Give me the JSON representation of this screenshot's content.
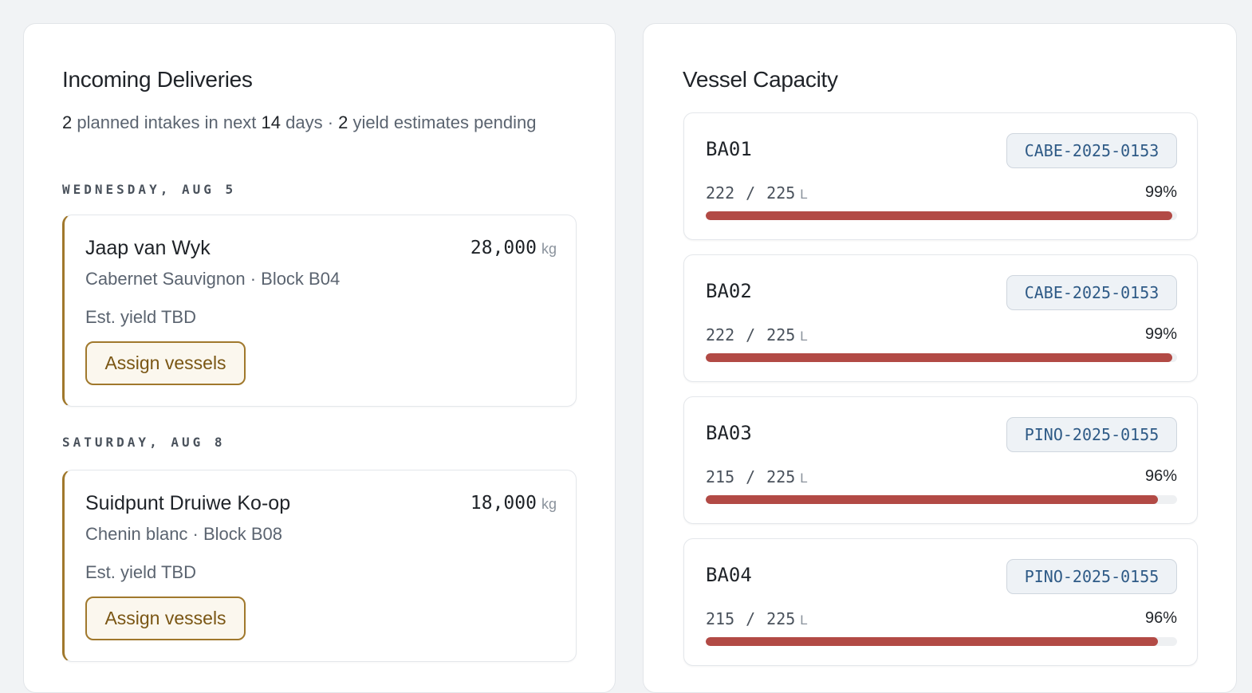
{
  "deliveries_panel": {
    "title": "Incoming Deliveries",
    "summary": {
      "planned_count": "2",
      "planned_text": " planned intakes in next ",
      "days_count": "14",
      "days_text": " days · ",
      "pending_count": "2",
      "pending_text": " yield estimates pending"
    },
    "groups": [
      {
        "day": "WEDNESDAY, AUG 5",
        "delivery": {
          "grower": "Jaap van Wyk",
          "variety": "Cabernet Sauvignon · Block B04",
          "yield": "Est. yield TBD",
          "weight": "28,000",
          "unit": "kg",
          "button": "Assign vessels"
        }
      },
      {
        "day": "SATURDAY, AUG 8",
        "delivery": {
          "grower": "Suidpunt Druiwe Ko-op",
          "variety": "Chenin blanc · Block B08",
          "yield": "Est. yield TBD",
          "weight": "18,000",
          "unit": "kg",
          "button": "Assign vessels"
        }
      }
    ]
  },
  "vessels_panel": {
    "title": "Vessel Capacity",
    "vessels": [
      {
        "id": "BA01",
        "lot": "CABE-2025-0153",
        "filled": "222",
        "capacity": "225",
        "unit": "L",
        "percent": "99%",
        "fill_fraction": 0.99
      },
      {
        "id": "BA02",
        "lot": "CABE-2025-0153",
        "filled": "222",
        "capacity": "225",
        "unit": "L",
        "percent": "99%",
        "fill_fraction": 0.99
      },
      {
        "id": "BA03",
        "lot": "PINO-2025-0155",
        "filled": "215",
        "capacity": "225",
        "unit": "L",
        "percent": "96%",
        "fill_fraction": 0.96
      },
      {
        "id": "BA04",
        "lot": "PINO-2025-0155",
        "filled": "215",
        "capacity": "225",
        "unit": "L",
        "percent": "96%",
        "fill_fraction": 0.96
      }
    ]
  },
  "colors": {
    "accent_gold": "#a0782c",
    "bar_red": "#b24a45",
    "badge_blue": "#2e5a86"
  }
}
